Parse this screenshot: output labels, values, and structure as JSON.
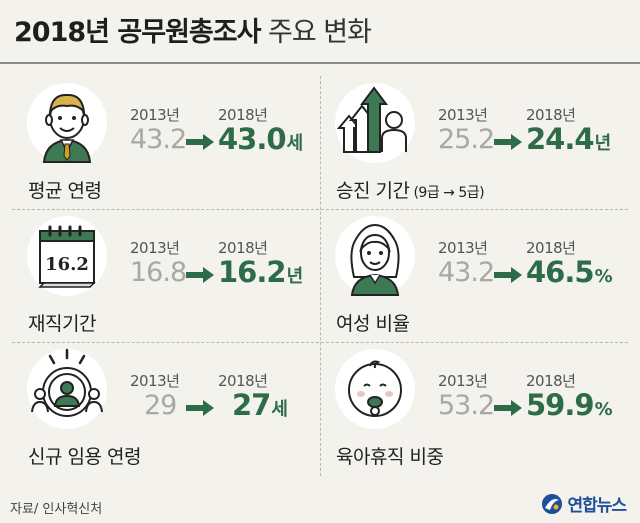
{
  "title": {
    "bold": "2018년 공무원총조사",
    "light": "주요 변화"
  },
  "colors": {
    "accent": "#2e6b48",
    "old_value": "#a8a8a4",
    "background": "#f3f2ec"
  },
  "cells": [
    {
      "label": "평균 연령",
      "label_small": "",
      "year_old": "2013년",
      "year_new": "2018년",
      "old": "43.2",
      "new": "43.0",
      "unit": "세",
      "icon": "man-face-icon"
    },
    {
      "label": "승진 기간",
      "label_small": "(9급 → 5급)",
      "year_old": "2013년",
      "year_new": "2018년",
      "old": "25.2",
      "new": "24.4",
      "unit": "년",
      "icon": "promotion-arrows-icon"
    },
    {
      "label": "재직기간",
      "label_small": "",
      "year_old": "2013년",
      "year_new": "2018년",
      "old": "16.8",
      "new": "16.2",
      "unit": "년",
      "icon": "calendar-icon",
      "icon_text": "16.2"
    },
    {
      "label": "여성 비율",
      "label_small": "",
      "year_old": "2013년",
      "year_new": "2018년",
      "old": "43.2",
      "new": "46.5",
      "unit": "%",
      "icon": "woman-face-icon"
    },
    {
      "label": "신규 임용 연령",
      "label_small": "",
      "year_old": "2013년",
      "year_new": "2018년",
      "old": "29",
      "new": "27",
      "unit": "세",
      "icon": "recruit-target-icon"
    },
    {
      "label": "육아휴직 비중",
      "label_small": "",
      "year_old": "2013년",
      "year_new": "2018년",
      "old": "53.2",
      "new": "59.9",
      "unit": "%",
      "icon": "baby-face-icon"
    }
  ],
  "source": "자료/ 인사혁신처",
  "logo": "연합뉴스"
}
